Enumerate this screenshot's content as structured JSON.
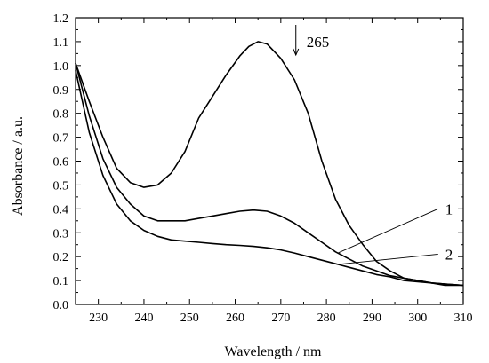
{
  "chart_data": {
    "type": "line",
    "xlabel": "Wavelength / nm",
    "ylabel": "Absorbance / a.u.",
    "xlim": [
      225,
      310
    ],
    "ylim": [
      0.0,
      1.2
    ],
    "x_ticks": [
      230,
      240,
      250,
      260,
      270,
      280,
      290,
      300,
      310
    ],
    "y_ticks": [
      "0.0",
      "0.1",
      "0.2",
      "0.3",
      "0.4",
      "0.5",
      "0.6",
      "0.7",
      "0.8",
      "0.9",
      "1.0",
      "1.1",
      "1.2"
    ],
    "grid": false,
    "series": [
      {
        "x": [
          225,
          228,
          231,
          234,
          237,
          240,
          243,
          246,
          249,
          252,
          255,
          258,
          261,
          263,
          265,
          267,
          270,
          273,
          276,
          279,
          282,
          285,
          288,
          291,
          294,
          297,
          300,
          303,
          306,
          310
        ],
        "y": [
          1.01,
          0.85,
          0.7,
          0.57,
          0.51,
          0.49,
          0.5,
          0.55,
          0.64,
          0.78,
          0.87,
          0.96,
          1.04,
          1.08,
          1.1,
          1.09,
          1.03,
          0.94,
          0.8,
          0.6,
          0.44,
          0.33,
          0.25,
          0.18,
          0.14,
          0.11,
          0.1,
          0.09,
          0.08,
          0.08
        ]
      },
      {
        "x": [
          225,
          228,
          231,
          234,
          237,
          240,
          243,
          246,
          249,
          252,
          255,
          258,
          261,
          264,
          267,
          270,
          273,
          276,
          279,
          282,
          285,
          288,
          291,
          294,
          297,
          300,
          303,
          306,
          310
        ],
        "y": [
          1.01,
          0.79,
          0.61,
          0.49,
          0.42,
          0.37,
          0.35,
          0.35,
          0.35,
          0.36,
          0.37,
          0.38,
          0.39,
          0.395,
          0.39,
          0.37,
          0.34,
          0.3,
          0.26,
          0.22,
          0.19,
          0.16,
          0.14,
          0.12,
          0.11,
          0.1,
          0.09,
          0.085,
          0.08
        ]
      },
      {
        "x": [
          225,
          228,
          231,
          234,
          237,
          240,
          243,
          246,
          249,
          252,
          255,
          258,
          261,
          264,
          267,
          270,
          273,
          276,
          279,
          282,
          285,
          288,
          291,
          294,
          297,
          300,
          303,
          306,
          310
        ],
        "y": [
          0.98,
          0.72,
          0.54,
          0.42,
          0.35,
          0.31,
          0.285,
          0.27,
          0.265,
          0.26,
          0.255,
          0.25,
          0.247,
          0.243,
          0.237,
          0.228,
          0.215,
          0.2,
          0.185,
          0.17,
          0.155,
          0.14,
          0.125,
          0.115,
          0.1,
          0.095,
          0.09,
          0.085,
          0.08
        ]
      }
    ],
    "annotations": [
      {
        "text": "265",
        "x": 273.3,
        "y": 1.1,
        "arrow": "down"
      },
      {
        "text": "1",
        "x": 287,
        "y": 0.4
      },
      {
        "text": "2",
        "x": 287,
        "y": 0.21
      }
    ]
  }
}
